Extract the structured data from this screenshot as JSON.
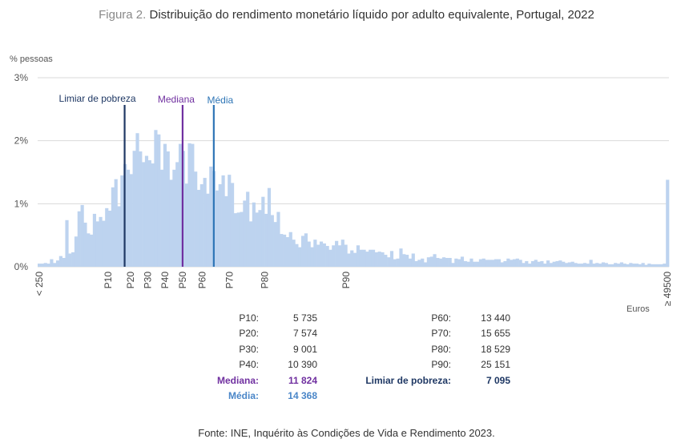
{
  "title": {
    "prefix": "Figura 2.",
    "text": "Distribuição do rendimento monetário líquido por adulto equivalente, Portugal, 2022"
  },
  "source": "Fonte: INE, Inquérito às Condições de Vida e Rendimento 2023.",
  "colors": {
    "bars": "#BDD3EF",
    "poverty_line": "#1F3864",
    "median_line": "#7030A0",
    "mean_line": "#2E75B6",
    "grid": "#D9D9D9"
  },
  "chart_data": {
    "type": "bar",
    "ylabel": "% pessoas",
    "xlabel": "Euros",
    "ylim": [
      0,
      3
    ],
    "y_ticks": [
      "0%",
      "1%",
      "2%",
      "3%"
    ],
    "x_first_label": "< 250",
    "x_last_label": "≥ 49500",
    "bin_width_eur": 250,
    "values": [
      0.05,
      0.05,
      0.06,
      0.05,
      0.12,
      0.06,
      0.1,
      0.17,
      0.14,
      0.74,
      0.21,
      0.23,
      0.48,
      0.88,
      0.98,
      0.7,
      0.53,
      0.51,
      0.84,
      0.72,
      0.79,
      0.73,
      0.93,
      0.89,
      1.26,
      1.39,
      0.96,
      1.45,
      1.63,
      1.54,
      1.47,
      1.84,
      2.12,
      1.83,
      1.66,
      1.76,
      1.69,
      1.64,
      2.17,
      2.1,
      1.54,
      1.95,
      1.83,
      1.38,
      1.54,
      1.66,
      1.95,
      1.84,
      1.32,
      1.96,
      1.95,
      1.51,
      1.22,
      1.31,
      1.41,
      1.16,
      1.59,
      1.52,
      1.21,
      1.31,
      1.45,
      1.12,
      1.46,
      1.33,
      0.85,
      0.86,
      0.87,
      1.05,
      1.19,
      0.72,
      1.02,
      0.86,
      0.9,
      1.11,
      0.84,
      1.25,
      0.82,
      0.71,
      0.87,
      0.52,
      0.51,
      0.47,
      0.55,
      0.43,
      0.36,
      0.31,
      0.49,
      0.53,
      0.4,
      0.31,
      0.43,
      0.35,
      0.4,
      0.37,
      0.33,
      0.27,
      0.34,
      0.41,
      0.34,
      0.43,
      0.35,
      0.21,
      0.26,
      0.22,
      0.34,
      0.27,
      0.27,
      0.24,
      0.27,
      0.27,
      0.23,
      0.24,
      0.23,
      0.19,
      0.15,
      0.25,
      0.12,
      0.13,
      0.29,
      0.2,
      0.19,
      0.13,
      0.21,
      0.09,
      0.11,
      0.13,
      0.07,
      0.15,
      0.16,
      0.2,
      0.14,
      0.13,
      0.15,
      0.14,
      0.14,
      0.06,
      0.13,
      0.12,
      0.16,
      0.09,
      0.08,
      0.13,
      0.08,
      0.08,
      0.12,
      0.13,
      0.11,
      0.11,
      0.11,
      0.12,
      0.12,
      0.07,
      0.09,
      0.13,
      0.11,
      0.12,
      0.13,
      0.11,
      0.06,
      0.09,
      0.05,
      0.09,
      0.11,
      0.08,
      0.09,
      0.05,
      0.1,
      0.06,
      0.08,
      0.09,
      0.1,
      0.08,
      0.06,
      0.07,
      0.08,
      0.06,
      0.05,
      0.05,
      0.06,
      0.05,
      0.11,
      0.05,
      0.06,
      0.05,
      0.07,
      0.06,
      0.04,
      0.04,
      0.06,
      0.05,
      0.07,
      0.05,
      0.04,
      0.06,
      0.05,
      0.05,
      0.04,
      0.06,
      0.03,
      0.05,
      0.04,
      0.04,
      0.04,
      0.04,
      0.05,
      1.38
    ],
    "percentile_ticks": [
      {
        "label": "P10",
        "eur": 5735
      },
      {
        "label": "P20",
        "eur": 7574
      },
      {
        "label": "P30",
        "eur": 9001
      },
      {
        "label": "P40",
        "eur": 10390
      },
      {
        "label": "P50",
        "eur": 11824
      },
      {
        "label": "P60",
        "eur": 13440
      },
      {
        "label": "P70",
        "eur": 15655
      },
      {
        "label": "P80",
        "eur": 18529
      },
      {
        "label": "P90",
        "eur": 25151
      }
    ],
    "reference_lines": [
      {
        "label": "Limiar de pobreza",
        "eur": 7095,
        "color": "#1F3864"
      },
      {
        "label": "Mediana",
        "eur": 11824,
        "color": "#7030A0"
      },
      {
        "label": "Média",
        "eur": 14368,
        "color": "#2E75B6"
      }
    ]
  },
  "stats": {
    "left": [
      {
        "key": "P10:",
        "value": "5 735"
      },
      {
        "key": "P20:",
        "value": "7 574"
      },
      {
        "key": "P30:",
        "value": "9 001"
      },
      {
        "key": "P40:",
        "value": "10 390"
      },
      {
        "key": "Mediana:",
        "value": "11 824"
      },
      {
        "key": "Média:",
        "value": "14 368"
      }
    ],
    "right": [
      {
        "key": "P60:",
        "value": "13 440"
      },
      {
        "key": "P70:",
        "value": "15 655"
      },
      {
        "key": "P80:",
        "value": "18 529"
      },
      {
        "key": "P90:",
        "value": "25 151"
      },
      {
        "key": "Limiar de pobreza:",
        "value": "7 095"
      }
    ]
  }
}
